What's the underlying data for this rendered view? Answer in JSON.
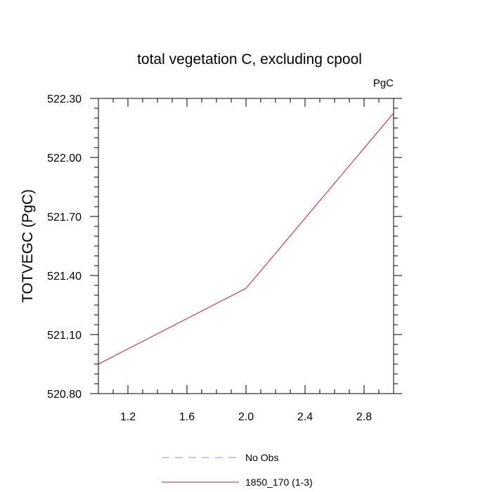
{
  "chart_data": {
    "type": "line",
    "title": "total vegetation C, excluding cpool",
    "units_label": "PgC",
    "ylabel": "TOTVEGC  (PgC)",
    "xlabel": "",
    "xlim": [
      1.0,
      3.0
    ],
    "ylim": [
      520.8,
      522.3
    ],
    "x_ticks": [
      1.2,
      1.6,
      2.0,
      2.4,
      2.8
    ],
    "x_tick_labels": [
      "1.2",
      "1.6",
      "2.0",
      "2.4",
      "2.8"
    ],
    "y_ticks": [
      520.8,
      521.1,
      521.4,
      521.7,
      522.0,
      522.3
    ],
    "y_tick_labels": [
      "520.80",
      "521.10",
      "521.40",
      "521.70",
      "522.00",
      "522.30"
    ],
    "grid": false,
    "legend_position": "bottom",
    "series": [
      {
        "name": "No Obs",
        "color": "#8c8ce6",
        "dashed": true,
        "x": [],
        "y": []
      },
      {
        "name": "1850_170 (1-3)",
        "color": "#e8102a",
        "dashed": false,
        "x": [
          1.0,
          2.0,
          3.0
        ],
        "y": [
          520.95,
          521.335,
          522.225
        ]
      }
    ]
  }
}
